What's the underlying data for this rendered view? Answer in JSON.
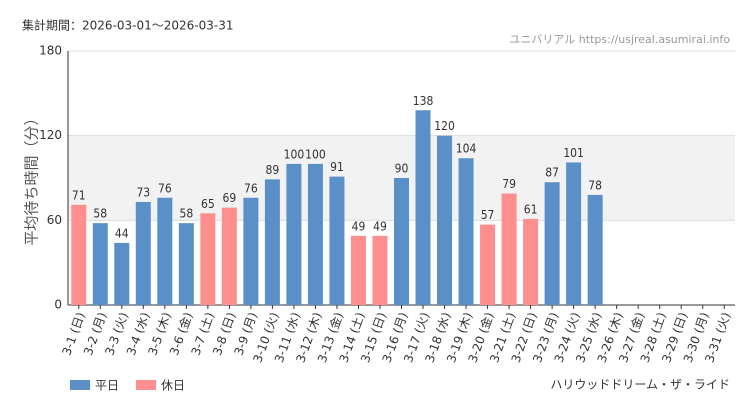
{
  "chart_data": {
    "type": "bar",
    "subtitle": "集計期間：2026-03-01～2026-03-31",
    "source": "ユニバリアル https://usjreal.asumirai.info",
    "y_label": "平均待ち時間（分）",
    "title": "ハリウッドドリーム・ザ・ライド",
    "categories": [
      "3-1 (日)",
      "3-2 (月)",
      "3-3 (火)",
      "3-4 (水)",
      "3-5 (木)",
      "3-6 (金)",
      "3-7 (土)",
      "3-8 (日)",
      "3-9 (月)",
      "3-10 (火)",
      "3-11 (水)",
      "3-12 (木)",
      "3-13 (金)",
      "3-14 (土)",
      "3-15 (日)",
      "3-16 (月)",
      "3-17 (火)",
      "3-18 (水)",
      "3-19 (木)",
      "3-20 (金)",
      "3-21 (土)",
      "3-22 (日)",
      "3-23 (月)",
      "3-24 (火)",
      "3-25 (水)",
      "3-26 (木)",
      "3-27 (金)",
      "3-28 (土)",
      "3-29 (日)",
      "3-30 (月)",
      "3-31 (火)"
    ],
    "category_colors": [
      "#f08080",
      "#333333",
      "#333333",
      "#333333",
      "#333333",
      "#333333",
      "#f08080",
      "#f08080",
      "#333333",
      "#333333",
      "#333333",
      "#333333",
      "#333333",
      "#f08080",
      "#f08080",
      "#333333",
      "#333333",
      "#333333",
      "#333333",
      "#f08080",
      "#f08080",
      "#f08080",
      "#333333",
      "#333333",
      "#333333",
      "#333333",
      "#333333",
      "#f08080",
      "#f08080",
      "#333333",
      "#333333"
    ],
    "series": [
      {
        "name": "平日",
        "color": "#5b8fc7",
        "values": [
          null,
          58,
          44,
          73,
          76,
          58,
          null,
          null,
          76,
          89,
          100,
          100,
          91,
          null,
          null,
          90,
          138,
          120,
          104,
          null,
          null,
          null,
          87,
          101,
          78,
          null,
          null,
          null,
          null,
          null,
          null
        ]
      },
      {
        "name": "休日",
        "color": "#ff8f8f",
        "values": [
          71,
          null,
          null,
          null,
          null,
          null,
          65,
          69,
          null,
          null,
          null,
          null,
          null,
          49,
          49,
          null,
          null,
          null,
          null,
          57,
          79,
          61,
          null,
          null,
          null,
          null,
          null,
          null,
          null,
          null,
          null
        ]
      }
    ],
    "ylim": [
      0,
      180
    ],
    "yticks": [
      0,
      60,
      120,
      180
    ],
    "grid": true,
    "legend": "bottom-left"
  }
}
